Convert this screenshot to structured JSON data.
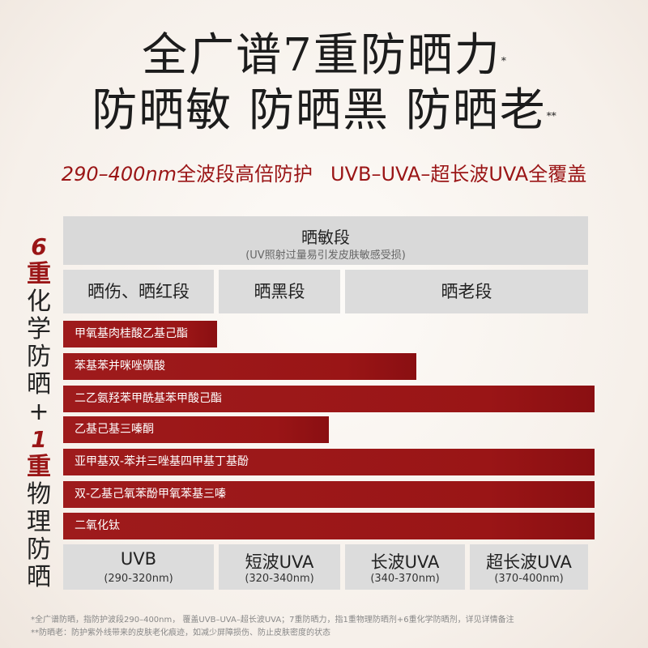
{
  "title_line1": "全广谱7重防晒力",
  "title_line1_mark": "*",
  "title_line2": "防晒敏 防晒黑 防晒老",
  "title_line2_mark": "**",
  "subline": {
    "range": "290–400nm",
    "desc": "全波段高倍防护",
    "coverage": "UVB–UVA–超长波UVA全覆盖"
  },
  "side_text": {
    "num6": "6",
    "zhong1": "重",
    "chars1": [
      "化",
      "学",
      "防",
      "晒",
      "+"
    ],
    "num1": "1",
    "zhong2": "重",
    "chars2": [
      "物",
      "理",
      "防",
      "晒"
    ]
  },
  "top_band": {
    "label": "晒敏段",
    "sublabel": "(UV照射过量易引发皮肤敏感受损)"
  },
  "mid_band": [
    "晒伤、晒红段",
    "晒黑段",
    "晒老段"
  ],
  "bars": [
    {
      "label": "甲氧基肉桂酸乙基己酯",
      "coverage": 0.29
    },
    {
      "label": "苯基苯并咪唑磺酸",
      "coverage": 0.665
    },
    {
      "label": "二乙氨羟苯甲酰基苯甲酸己酯",
      "coverage": 1.0
    },
    {
      "label": "乙基己基三嗪酮",
      "coverage": 0.5
    },
    {
      "label": "亚甲基双-苯并三唑基四甲基丁基酚",
      "coverage": 1.0
    },
    {
      "label": "双-乙基己氧苯酚甲氧苯基三嗪",
      "coverage": 1.0
    },
    {
      "label": "二氧化钛",
      "coverage": 1.0
    }
  ],
  "bottom_band": [
    {
      "name": "UVB",
      "range": "(290-320nm)"
    },
    {
      "name": "短波UVA",
      "range": "(320-340nm)"
    },
    {
      "name": "长波UVA",
      "range": "(340-370nm)"
    },
    {
      "name": "超长波UVA",
      "range": "(370-400nm)"
    }
  ],
  "footnotes": [
    "*全广谱防晒，指防护波段290–400nm， 覆盖UVB–UVA–超长波UVA；7重防晒力，指1重物理防晒剂+6重化学防晒剂，详见详情备注",
    "**防晒老：防护紫外线带来的皮肤老化痕迹，如减少屏障损伤、防止皮肤密度的状态"
  ],
  "colors": {
    "accent": "#9a1516",
    "band_grey": "#dcdcdc"
  }
}
